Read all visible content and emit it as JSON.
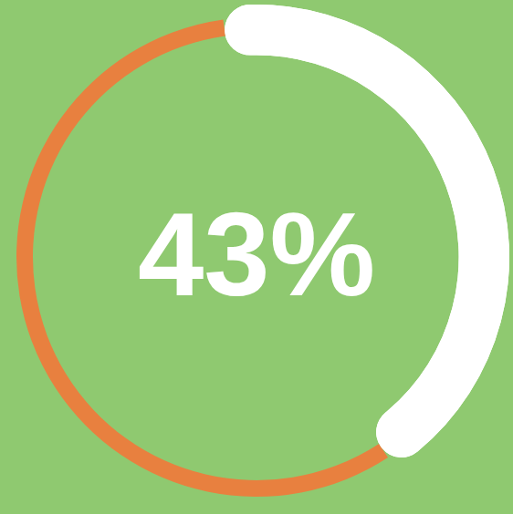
{
  "chart_data": {
    "type": "doughnut",
    "center_label": "43%",
    "values": [
      43,
      57
    ],
    "colors": [
      "#ffffff",
      "#e8803f"
    ]
  }
}
